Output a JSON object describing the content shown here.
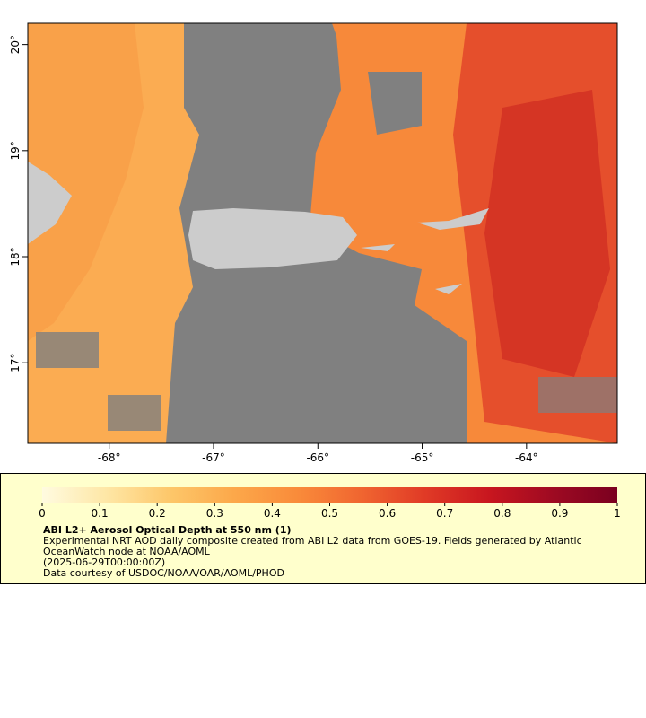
{
  "map": {
    "xlim": [
      -68.78,
      -63.13
    ],
    "ylim": [
      16.24,
      20.2
    ],
    "xticks": [
      {
        "value": -68,
        "label": "-68°"
      },
      {
        "value": -67,
        "label": "-67°"
      },
      {
        "value": -66,
        "label": "-66°"
      },
      {
        "value": -65,
        "label": "-65°"
      },
      {
        "value": -64,
        "label": "-64°"
      }
    ],
    "yticks": [
      {
        "value": 17,
        "label": "17°"
      },
      {
        "value": 18,
        "label": "18°"
      },
      {
        "value": 19,
        "label": "19°"
      },
      {
        "value": 20,
        "label": "20°"
      }
    ]
  },
  "colorbar": {
    "range": [
      0,
      1
    ],
    "ticks": [
      0,
      0.1,
      0.2,
      0.3,
      0.4,
      0.5,
      0.6,
      0.7,
      0.8,
      0.9,
      1
    ],
    "colors": [
      "#fffbe0",
      "#fee7a6",
      "#fdc76a",
      "#fca84a",
      "#f98b3a",
      "#f06530",
      "#e03a26",
      "#c8161f",
      "#9e0a22",
      "#7a0020"
    ]
  },
  "legend": {
    "title": "ABI L2+ Aerosol Optical Depth at 550 nm (1)",
    "lines": [
      "Experimental NRT AOD daily composite created from ABI L2 data from GOES-19. Fields generated by Atlantic",
      "OceanWatch node at NOAA/AOML",
      "(2025-06-29T00:00:00Z)",
      "Data courtesy of USDOC/NOAA/OAR/AOML/PHOD"
    ]
  }
}
